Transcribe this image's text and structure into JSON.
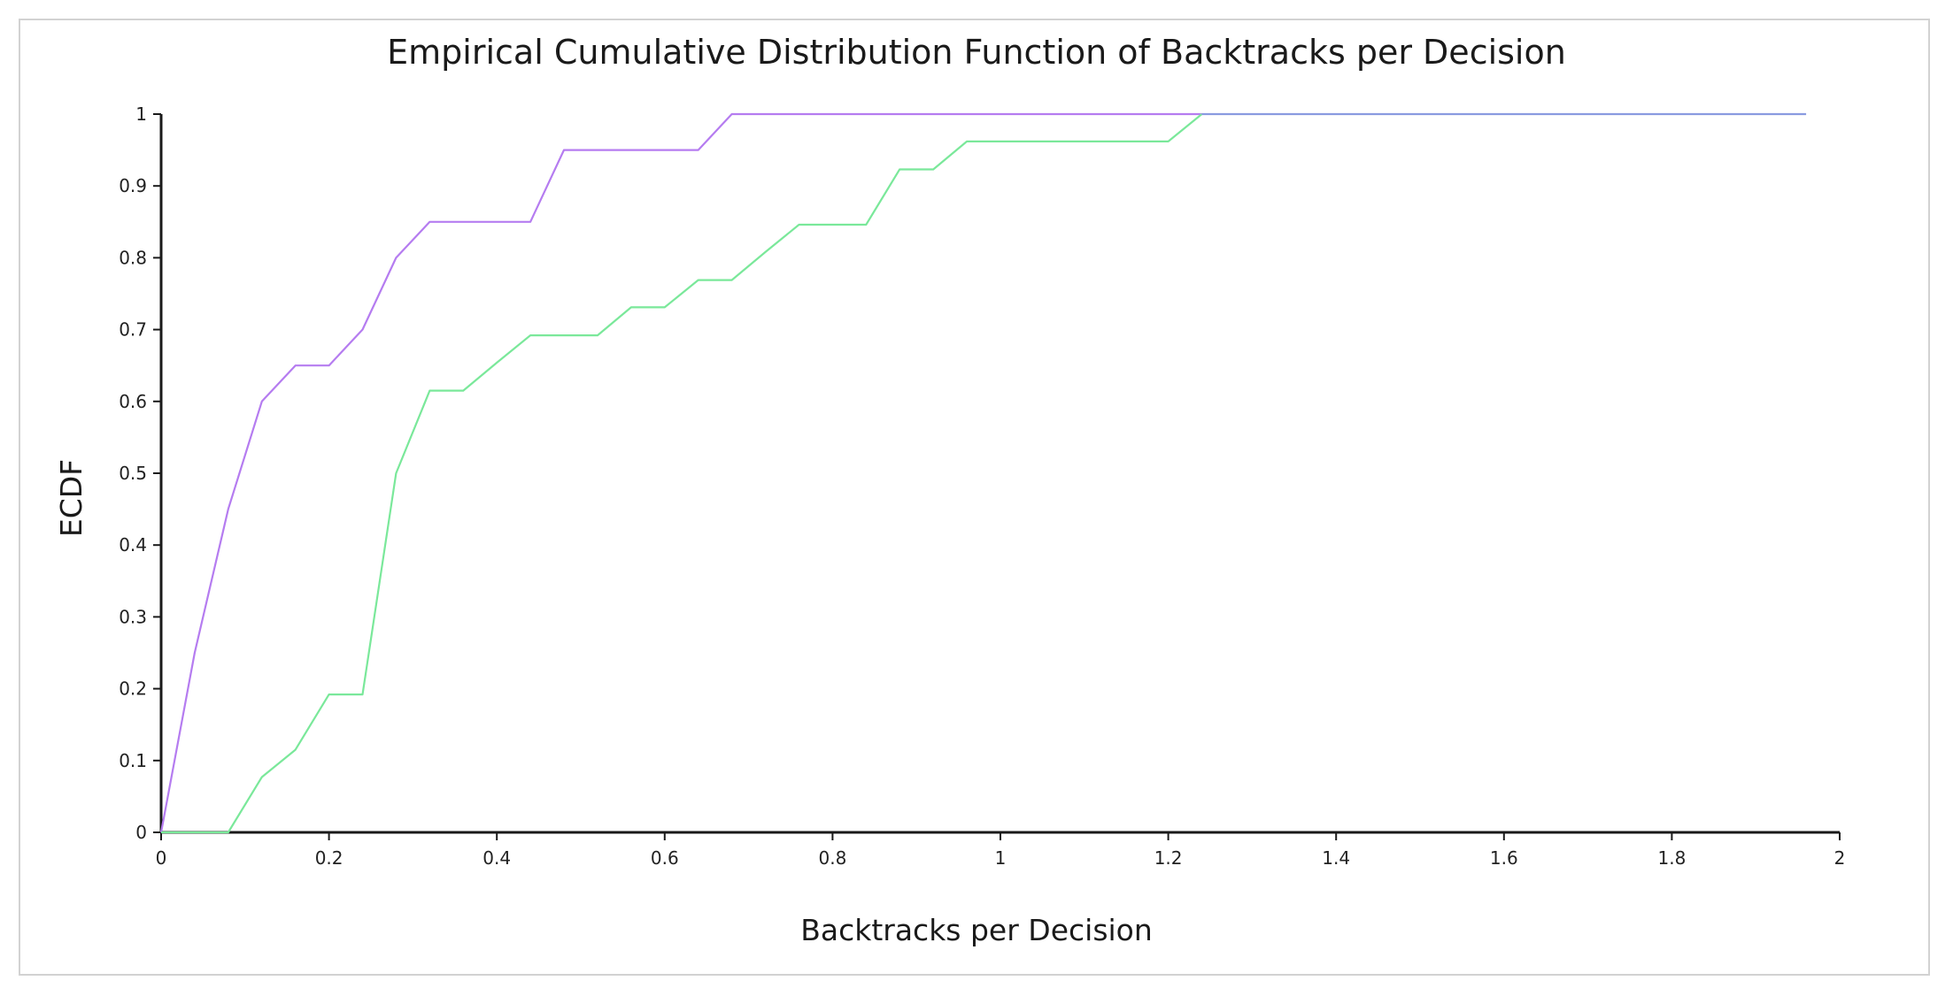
{
  "chart_data": {
    "type": "line",
    "title": "Empirical Cumulative Distribution Function of Backtracks per Decision",
    "xlabel": "Backtracks per Decision",
    "ylabel": "ECDF",
    "xlim": [
      0,
      2
    ],
    "ylim": [
      0,
      1
    ],
    "xticks": [
      0,
      0.2,
      0.4,
      0.6,
      0.8,
      1,
      1.2,
      1.4,
      1.6,
      1.8,
      2
    ],
    "yticks": [
      0,
      0.1,
      0.2,
      0.3,
      0.4,
      0.5,
      0.6,
      0.7,
      0.8,
      0.9,
      1
    ],
    "grid": false,
    "legend": "none",
    "series": [
      {
        "color": "#b57cf0",
        "x": [
          0,
          0.04,
          0.08,
          0.12,
          0.16,
          0.2,
          0.24,
          0.28,
          0.32,
          0.36,
          0.4,
          0.44,
          0.48,
          0.52,
          0.56,
          0.6,
          0.64,
          0.68,
          0.72,
          0.76,
          0.8,
          0.84,
          0.88,
          0.92,
          0.96,
          1.0,
          1.04,
          1.08,
          1.12,
          1.16,
          1.2,
          1.24
        ],
        "y": [
          0,
          0.25,
          0.45,
          0.6,
          0.65,
          0.65,
          0.7,
          0.8,
          0.85,
          0.85,
          0.85,
          0.85,
          0.95,
          0.95,
          0.95,
          0.95,
          0.95,
          1,
          1,
          1,
          1,
          1,
          1,
          1,
          1,
          1,
          1,
          1,
          1,
          1,
          1,
          1
        ]
      },
      {
        "color": "#7ae89a",
        "x": [
          0,
          0.04,
          0.08,
          0.12,
          0.16,
          0.2,
          0.24,
          0.28,
          0.32,
          0.36,
          0.4,
          0.44,
          0.48,
          0.52,
          0.56,
          0.6,
          0.64,
          0.68,
          0.72,
          0.76,
          0.8,
          0.84,
          0.88,
          0.92,
          0.96,
          1.0,
          1.04,
          1.08,
          1.12,
          1.16,
          1.2,
          1.24
        ],
        "y": [
          0,
          0,
          0,
          0.077,
          0.115,
          0.192,
          0.192,
          0.5,
          0.615,
          0.615,
          0.654,
          0.692,
          0.692,
          0.692,
          0.731,
          0.731,
          0.769,
          0.769,
          0.808,
          0.846,
          0.846,
          0.846,
          0.923,
          0.923,
          0.962,
          0.962,
          0.962,
          0.962,
          0.962,
          0.962,
          0.962,
          1
        ]
      },
      {
        "color": "#8a9be0",
        "x": [
          1.24,
          1.96
        ],
        "y": [
          1,
          1
        ]
      }
    ]
  }
}
